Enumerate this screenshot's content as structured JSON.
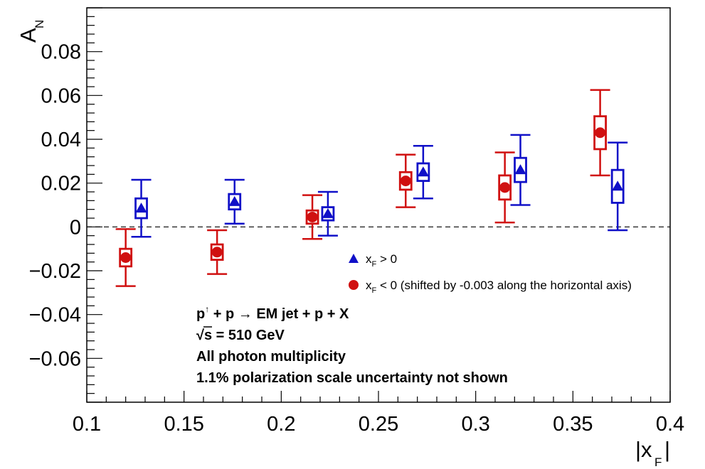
{
  "chart_data": {
    "type": "scatter",
    "xlabel": "|x",
    "xlabel_sub": "F",
    "xlabel_close": "|",
    "ylabel": "A",
    "ylabel_sub": "N",
    "xlim": [
      0.1,
      0.4
    ],
    "ylim": [
      -0.08,
      0.1
    ],
    "x_ticks": [
      "0.1",
      "0.15",
      "0.2",
      "0.25",
      "0.3",
      "0.35",
      "0.4"
    ],
    "y_ticks": [
      "−0.06",
      "−0.04",
      "−0.02",
      "0",
      "0.02",
      "0.04",
      "0.06",
      "0.08"
    ],
    "reference_line": {
      "y": 0,
      "style": "dashed"
    },
    "series": [
      {
        "name": "x_F > 0",
        "marker": "triangle",
        "color": "#1010c8",
        "x": [
          0.128,
          0.176,
          0.224,
          0.273,
          0.323,
          0.373
        ],
        "y": [
          0.0085,
          0.0115,
          0.006,
          0.025,
          0.026,
          0.0185
        ],
        "stat_err": [
          0.013,
          0.01,
          0.01,
          0.012,
          0.016,
          0.02
        ],
        "sys_err": [
          0.0045,
          0.0035,
          0.003,
          0.004,
          0.0055,
          0.0075
        ]
      },
      {
        "name": "x_F < 0 (shifted by -0.003 along the horizontal axis)",
        "marker": "circle",
        "color": "#d01010",
        "x": [
          0.12,
          0.167,
          0.216,
          0.264,
          0.315,
          0.364
        ],
        "y": [
          -0.014,
          -0.0115,
          0.0045,
          0.021,
          0.018,
          0.043
        ],
        "stat_err": [
          0.013,
          0.01,
          0.01,
          0.012,
          0.016,
          0.0195
        ],
        "sys_err": [
          0.004,
          0.0035,
          0.003,
          0.004,
          0.0055,
          0.0075
        ]
      }
    ],
    "legend": {
      "entry1_main": "x",
      "entry1_sub": "F",
      "entry1_rest": " > 0",
      "entry2_main": "x",
      "entry2_sub": "F",
      "entry2_rest": " < 0 (shifted by -0.003 along the horizontal axis)"
    },
    "annotations": {
      "line1_a": "p",
      "line1_sup": "↑",
      "line1_b": " + p  → EM jet + p + X",
      "line2": "√s = 510 GeV",
      "line3": "All photon multiplicity",
      "line4": "1.1% polarization scale uncertainty not shown"
    }
  }
}
